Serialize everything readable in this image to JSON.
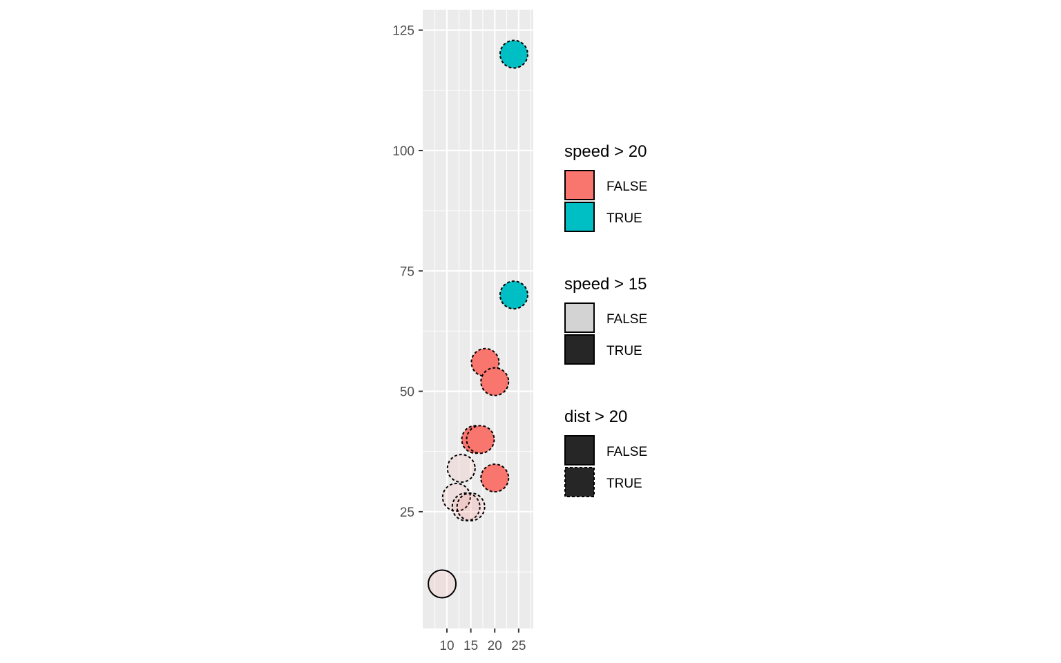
{
  "chart_data": {
    "type": "scatter",
    "title": "",
    "xlabel": "",
    "ylabel": "",
    "xlim": [
      4.95,
      28.05
    ],
    "ylim": [
      0.75,
      129.25
    ],
    "x_ticks": [
      10,
      15,
      20,
      25
    ],
    "y_ticks": [
      25,
      50,
      75,
      100,
      125
    ],
    "grid": true,
    "legend_position": "right",
    "points": [
      {
        "x": 9,
        "y": 10,
        "speed_gt_20": false,
        "speed_gt_15": false,
        "dist_gt_20": false
      },
      {
        "x": 12,
        "y": 28,
        "speed_gt_20": false,
        "speed_gt_15": false,
        "dist_gt_20": true
      },
      {
        "x": 13,
        "y": 34,
        "speed_gt_20": false,
        "speed_gt_15": false,
        "dist_gt_20": true
      },
      {
        "x": 14,
        "y": 26,
        "speed_gt_20": false,
        "speed_gt_15": false,
        "dist_gt_20": true
      },
      {
        "x": 15,
        "y": 26,
        "speed_gt_20": false,
        "speed_gt_15": false,
        "dist_gt_20": true
      },
      {
        "x": 16,
        "y": 40,
        "speed_gt_20": false,
        "speed_gt_15": true,
        "dist_gt_20": true
      },
      {
        "x": 17,
        "y": 40,
        "speed_gt_20": false,
        "speed_gt_15": true,
        "dist_gt_20": true
      },
      {
        "x": 18,
        "y": 56,
        "speed_gt_20": false,
        "speed_gt_15": true,
        "dist_gt_20": true
      },
      {
        "x": 20,
        "y": 52,
        "speed_gt_20": false,
        "speed_gt_15": true,
        "dist_gt_20": true
      },
      {
        "x": 20,
        "y": 32,
        "speed_gt_20": false,
        "speed_gt_15": true,
        "dist_gt_20": true
      },
      {
        "x": 24,
        "y": 70,
        "speed_gt_20": true,
        "speed_gt_15": true,
        "dist_gt_20": true
      },
      {
        "x": 24,
        "y": 120,
        "speed_gt_20": true,
        "speed_gt_15": true,
        "dist_gt_20": true
      }
    ],
    "colors": {
      "speed_gt_20_false": "#F8766D",
      "speed_gt_20_true": "#00BFC4",
      "speed_gt_15_false": "#D3D3D3",
      "speed_gt_15_true": "#262626",
      "panel_background": "#EBEBEB",
      "gridline": "#FFFFFF",
      "outline": "#000000"
    },
    "legends": [
      {
        "title": "speed > 20",
        "aesthetic": "fill",
        "entries": [
          {
            "label": "FALSE",
            "fill": "#F8766D",
            "linetype": "solid"
          },
          {
            "label": "TRUE",
            "fill": "#00BFC4",
            "linetype": "solid"
          }
        ]
      },
      {
        "title": "speed > 15",
        "aesthetic": "alpha",
        "entries": [
          {
            "label": "FALSE",
            "fill": "#D3D3D3",
            "linetype": "solid"
          },
          {
            "label": "TRUE",
            "fill": "#262626",
            "linetype": "solid"
          }
        ]
      },
      {
        "title": "dist > 20",
        "aesthetic": "linetype",
        "entries": [
          {
            "label": "FALSE",
            "fill": "#262626",
            "linetype": "solid"
          },
          {
            "label": "TRUE",
            "fill": "#262626",
            "linetype": "dotted"
          }
        ]
      }
    ]
  }
}
